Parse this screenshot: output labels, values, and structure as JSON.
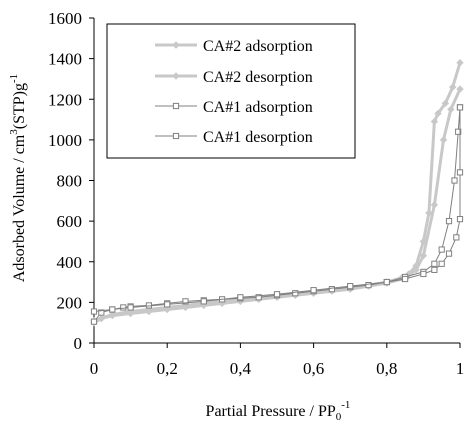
{
  "chart_data": {
    "type": "line",
    "xlabel": "Partial Pressure / PP",
    "xlabel_sub": "0",
    "xlabel_sup": "-1",
    "ylabel_pre": "Adsorbed Volume / cm",
    "ylabel_sup1": "3",
    "ylabel_mid": "(STP)g",
    "ylabel_sup2": "-1",
    "xlim": [
      0,
      1
    ],
    "ylim": [
      0,
      1600
    ],
    "xticks": [
      0,
      0.2,
      0.4,
      0.6,
      0.8,
      1
    ],
    "xtick_labels": [
      "0",
      "0,2",
      "0,4",
      "0,6",
      "0,8",
      "1"
    ],
    "yticks": [
      0,
      200,
      400,
      600,
      800,
      1000,
      1200,
      1400,
      1600
    ],
    "ytick_labels": [
      "0",
      "200",
      "400",
      "600",
      "800",
      "1000",
      "1200",
      "1400",
      "1600"
    ],
    "grid": false,
    "legend_position": "top-left",
    "series": [
      {
        "name": "CA#2 adsorption",
        "color": "#c8c8c8",
        "marker": "diamond-filled",
        "points": [
          [
            0.0,
            100
          ],
          [
            0.02,
            120
          ],
          [
            0.05,
            135
          ],
          [
            0.1,
            145
          ],
          [
            0.15,
            155
          ],
          [
            0.2,
            165
          ],
          [
            0.25,
            175
          ],
          [
            0.3,
            185
          ],
          [
            0.35,
            195
          ],
          [
            0.4,
            205
          ],
          [
            0.45,
            215
          ],
          [
            0.5,
            225
          ],
          [
            0.55,
            235
          ],
          [
            0.6,
            245
          ],
          [
            0.65,
            255
          ],
          [
            0.7,
            265
          ],
          [
            0.75,
            280
          ],
          [
            0.8,
            295
          ],
          [
            0.85,
            320
          ],
          [
            0.88,
            360
          ],
          [
            0.9,
            430
          ],
          [
            0.93,
            680
          ],
          [
            0.955,
            1000
          ],
          [
            0.975,
            1150
          ],
          [
            1.0,
            1250
          ]
        ]
      },
      {
        "name": "CA#2 desorption",
        "color": "#c8c8c8",
        "marker": "diamond-filled",
        "points": [
          [
            1.0,
            1380
          ],
          [
            0.98,
            1260
          ],
          [
            0.96,
            1180
          ],
          [
            0.94,
            1130
          ],
          [
            0.93,
            1090
          ],
          [
            0.915,
            640
          ],
          [
            0.9,
            500
          ],
          [
            0.88,
            380
          ],
          [
            0.86,
            340
          ],
          [
            0.84,
            320
          ],
          [
            0.8,
            300
          ],
          [
            0.7,
            270
          ],
          [
            0.6,
            250
          ],
          [
            0.5,
            235
          ],
          [
            0.4,
            215
          ],
          [
            0.3,
            195
          ],
          [
            0.2,
            175
          ],
          [
            0.1,
            155
          ],
          [
            0.05,
            140
          ],
          [
            0.0,
            110
          ]
        ]
      },
      {
        "name": "CA#1 adsorption",
        "color": "#808080",
        "marker": "square-open",
        "points": [
          [
            0.0,
            105
          ],
          [
            0.02,
            150
          ],
          [
            0.05,
            165
          ],
          [
            0.08,
            175
          ],
          [
            0.1,
            180
          ],
          [
            0.15,
            185
          ],
          [
            0.2,
            195
          ],
          [
            0.25,
            205
          ],
          [
            0.3,
            210
          ],
          [
            0.35,
            215
          ],
          [
            0.4,
            220
          ],
          [
            0.45,
            225
          ],
          [
            0.5,
            235
          ],
          [
            0.55,
            245
          ],
          [
            0.6,
            255
          ],
          [
            0.65,
            265
          ],
          [
            0.7,
            275
          ],
          [
            0.75,
            285
          ],
          [
            0.8,
            300
          ],
          [
            0.85,
            325
          ],
          [
            0.9,
            350
          ],
          [
            0.93,
            390
          ],
          [
            0.95,
            460
          ],
          [
            0.97,
            600
          ],
          [
            0.985,
            800
          ],
          [
            0.995,
            1040
          ],
          [
            1.0,
            1160
          ]
        ]
      },
      {
        "name": "CA#1 desorption",
        "color": "#808080",
        "marker": "square-open",
        "points": [
          [
            1.0,
            1160
          ],
          [
            1.0,
            840
          ],
          [
            1.0,
            610
          ],
          [
            0.99,
            520
          ],
          [
            0.97,
            440
          ],
          [
            0.95,
            390
          ],
          [
            0.93,
            360
          ],
          [
            0.9,
            340
          ],
          [
            0.85,
            315
          ],
          [
            0.8,
            300
          ],
          [
            0.7,
            280
          ],
          [
            0.6,
            260
          ],
          [
            0.5,
            240
          ],
          [
            0.4,
            225
          ],
          [
            0.3,
            205
          ],
          [
            0.2,
            190
          ],
          [
            0.1,
            175
          ],
          [
            0.05,
            165
          ],
          [
            0.0,
            155
          ]
        ]
      }
    ]
  }
}
